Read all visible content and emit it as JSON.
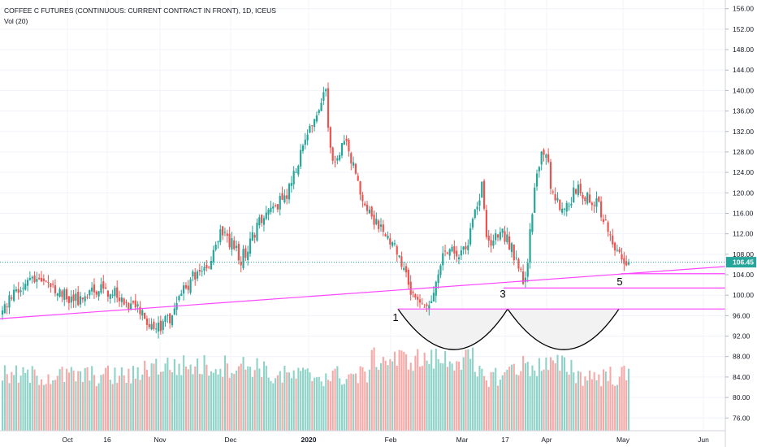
{
  "legend": {
    "title": "COFFEE C FUTURES (CONTINUOUS: CURRENT CONTRACT IN FRONT), 1D, ICEUS",
    "volume": "Vol (20)"
  },
  "chart_data": {
    "type": "candlestick",
    "symbol": "COFFEE C FUTURES (CONTINUOUS: CURRENT CONTRACT IN FRONT)",
    "interval": "1D",
    "exchange": "ICEUS",
    "yaxis": {
      "side": "right",
      "ticks": [
        "156.00",
        "152.00",
        "148.00",
        "144.00",
        "140.00",
        "136.00",
        "132.00",
        "128.00",
        "124.00",
        "120.00",
        "116.00",
        "112.00",
        "108.00",
        "104.00",
        "100.00",
        "96.00",
        "92.00",
        "88.00",
        "84.00",
        "80.00",
        "76.00"
      ],
      "ylim": [
        73.5,
        157.7
      ]
    },
    "xaxis": {
      "labels": [
        "Oct",
        "16",
        "Nov",
        "Dec",
        "2020",
        "Feb",
        "Mar",
        "17",
        "Apr",
        "May",
        "Jun"
      ]
    },
    "last_price": "106.45",
    "last_price_value": 106.45,
    "colors": {
      "up": "#26a69a",
      "down": "#ef5350",
      "up_volume": "#8fd3c8",
      "down_volume": "#f7a9a7",
      "trendline": "#ff44ff",
      "last_price_line": "#26a69a",
      "arc": "#000000"
    },
    "close_path": [
      [
        0,
        97
      ],
      [
        8,
        102
      ],
      [
        15,
        104
      ],
      [
        20,
        103
      ],
      [
        26,
        100
      ],
      [
        34,
        99
      ],
      [
        42,
        101
      ],
      [
        50,
        100
      ],
      [
        56,
        98
      ],
      [
        62,
        96
      ],
      [
        67,
        93
      ],
      [
        72,
        95
      ],
      [
        77,
        99
      ],
      [
        83,
        104
      ],
      [
        90,
        106
      ],
      [
        95,
        112
      ],
      [
        100,
        110
      ],
      [
        104,
        107
      ],
      [
        108,
        110
      ],
      [
        112,
        114
      ],
      [
        116,
        118
      ],
      [
        120,
        118
      ],
      [
        124,
        120
      ],
      [
        128,
        125
      ],
      [
        132,
        131
      ],
      [
        135,
        133
      ],
      [
        138,
        137
      ],
      [
        141,
        140
      ],
      [
        143,
        128
      ],
      [
        146,
        126
      ],
      [
        149,
        130
      ],
      [
        151,
        128
      ],
      [
        153,
        126
      ],
      [
        156,
        120
      ],
      [
        158,
        117
      ],
      [
        162,
        114
      ],
      [
        165,
        113
      ],
      [
        168,
        111
      ],
      [
        171,
        109
      ],
      [
        174,
        106
      ],
      [
        177,
        102
      ],
      [
        180,
        100
      ],
      [
        183,
        99
      ],
      [
        185,
        98
      ],
      [
        188,
        100
      ],
      [
        190,
        103
      ],
      [
        192,
        108
      ],
      [
        195,
        110
      ],
      [
        198,
        107
      ],
      [
        201,
        109
      ],
      [
        204,
        112
      ],
      [
        207,
        118
      ],
      [
        209,
        121
      ],
      [
        211,
        111
      ],
      [
        214,
        110
      ],
      [
        217,
        113
      ],
      [
        220,
        111
      ],
      [
        223,
        108
      ],
      [
        226,
        104
      ],
      [
        228,
        103
      ],
      [
        230,
        112
      ],
      [
        232,
        122
      ],
      [
        235,
        127
      ],
      [
        237,
        128
      ],
      [
        239,
        122
      ],
      [
        242,
        118
      ],
      [
        245,
        117
      ],
      [
        248,
        119
      ],
      [
        250,
        121
      ],
      [
        253,
        120
      ],
      [
        256,
        119
      ],
      [
        259,
        118
      ],
      [
        262,
        115
      ],
      [
        265,
        112
      ],
      [
        268,
        108
      ],
      [
        271,
        107
      ],
      [
        273,
        106.45
      ]
    ],
    "volume_levels": [
      0.45,
      0.9
    ],
    "trendlines": [
      {
        "name": "rising support",
        "from": [
          0,
          95.4
        ],
        "to": [
          273,
          105.6
        ]
      }
    ],
    "horizontal_levels": [
      104.2,
      101.4,
      97.3
    ],
    "wave_labels": [
      "1",
      "3",
      "5"
    ],
    "pattern_arcs": 2
  }
}
